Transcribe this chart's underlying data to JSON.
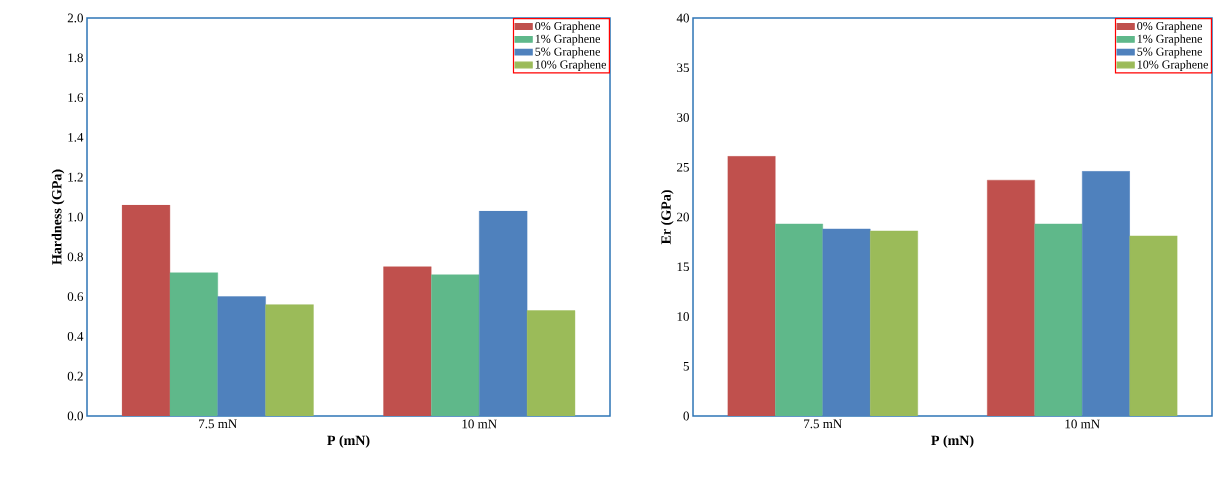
{
  "chart_data": [
    {
      "type": "bar",
      "xlabel": "P (mN)",
      "ylabel": "Hardness (GPa)",
      "categories": [
        "7.5 mN",
        "10 mN"
      ],
      "series": [
        {
          "name": "0% Graphene",
          "color": "#c0504d",
          "values": [
            1.06,
            0.75
          ]
        },
        {
          "name": "1% Graphene",
          "color": "#5fb88a",
          "values": [
            0.72,
            0.71
          ]
        },
        {
          "name": "5% Graphene",
          "color": "#4f81bd",
          "values": [
            0.6,
            1.03
          ]
        },
        {
          "name": "10% Graphene",
          "color": "#9bbb59",
          "values": [
            0.56,
            0.53
          ]
        }
      ],
      "ylim": [
        0,
        2.0
      ],
      "yticks": [
        {
          "value": 0,
          "label": "0.0"
        },
        {
          "value": 0.2,
          "label": "0.2"
        },
        {
          "value": 0.4,
          "label": "0.4"
        },
        {
          "value": 0.6,
          "label": "0.6"
        },
        {
          "value": 0.8,
          "label": "0.8"
        },
        {
          "value": 1.0,
          "label": "1.0"
        },
        {
          "value": 1.2,
          "label": "1.2"
        },
        {
          "value": 1.4,
          "label": "1.4"
        },
        {
          "value": 1.6,
          "label": "1.6"
        },
        {
          "value": 1.8,
          "label": "1.8"
        },
        {
          "value": 2.0,
          "label": "2.0"
        }
      ],
      "legend": "top right"
    },
    {
      "type": "bar",
      "xlabel": "P (mN)",
      "ylabel": "Er (GPa)",
      "categories": [
        "7.5 mN",
        "10 mN"
      ],
      "series": [
        {
          "name": "0% Graphene",
          "color": "#c0504d",
          "values": [
            26.1,
            23.7
          ]
        },
        {
          "name": "1% Graphene",
          "color": "#5fb88a",
          "values": [
            19.3,
            19.3
          ]
        },
        {
          "name": "5% Graphene",
          "color": "#4f81bd",
          "values": [
            18.8,
            24.6
          ]
        },
        {
          "name": "10% Graphene",
          "color": "#9bbb59",
          "values": [
            18.6,
            18.1
          ]
        }
      ],
      "ylim": [
        0,
        40
      ],
      "yticks": [
        0,
        5,
        10,
        15,
        20,
        25,
        30,
        35,
        40
      ],
      "legend": "top right"
    }
  ]
}
